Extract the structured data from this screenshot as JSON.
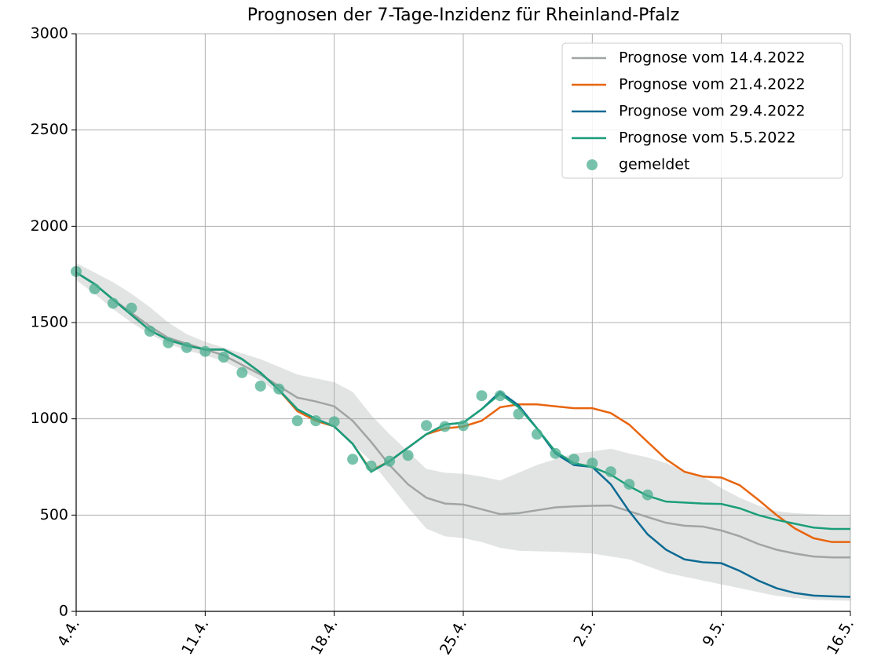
{
  "chart_data": {
    "type": "line",
    "title": "Prognosen der 7-Tage-Inzidenz für Rheinland-Pfalz",
    "x": [
      0,
      1,
      2,
      3,
      4,
      5,
      6,
      7,
      8,
      9,
      10,
      11,
      12,
      13,
      14,
      15,
      16,
      17,
      18,
      19,
      20,
      21,
      22,
      23,
      24,
      25,
      26,
      27,
      28,
      29,
      30,
      31,
      32,
      33,
      34,
      35,
      36,
      37,
      38,
      39,
      40,
      41,
      42
    ],
    "xlim": [
      0,
      42
    ],
    "xticks": [
      {
        "value": 0,
        "label": "4.4."
      },
      {
        "value": 7,
        "label": "11.4."
      },
      {
        "value": 14,
        "label": "18.4."
      },
      {
        "value": 21,
        "label": "25.4."
      },
      {
        "value": 28,
        "label": "2.5."
      },
      {
        "value": 35,
        "label": "9.5."
      },
      {
        "value": 42,
        "label": "16.5."
      }
    ],
    "ylim": [
      0,
      3000
    ],
    "yticks": [
      0,
      500,
      1000,
      1500,
      2000,
      2500,
      3000
    ],
    "grid": true,
    "legend": "upper right",
    "band": {
      "color": "#a0a5a3",
      "lower": [
        1720,
        1650,
        1570,
        1500,
        1440,
        1390,
        1355,
        1330,
        1300,
        1250,
        1200,
        1130,
        1060,
        1010,
        960,
        870,
        780,
        660,
        540,
        430,
        390,
        380,
        360,
        330,
        315,
        312,
        310,
        305,
        300,
        285,
        270,
        235,
        200,
        180,
        160,
        140,
        120,
        100,
        80,
        70,
        60,
        57,
        55
      ],
      "upper": [
        1810,
        1760,
        1710,
        1650,
        1580,
        1500,
        1440,
        1400,
        1370,
        1340,
        1310,
        1270,
        1230,
        1210,
        1190,
        1140,
        1020,
        920,
        830,
        740,
        720,
        715,
        700,
        680,
        720,
        760,
        790,
        820,
        830,
        845,
        820,
        800,
        770,
        730,
        700,
        640,
        590,
        550,
        520,
        510,
        505,
        500,
        500
      ]
    },
    "series": [
      {
        "name": "Prognose vom 14.4.2022",
        "color": "#a0a5a3",
        "values": [
          1760,
          1700,
          1620,
          1550,
          1480,
          1420,
          1390,
          1360,
          1330,
          1280,
          1230,
          1170,
          1110,
          1090,
          1065,
          990,
          880,
          760,
          660,
          590,
          560,
          555,
          530,
          505,
          510,
          525,
          540,
          545,
          548,
          550,
          520,
          490,
          460,
          445,
          440,
          420,
          390,
          350,
          320,
          300,
          285,
          280,
          280
        ]
      },
      {
        "name": "Prognose vom 21.4.2022",
        "color": "#e8650f",
        "values": [
          1760,
          1700,
          1620,
          1540,
          1460,
          1410,
          1380,
          1360,
          1360,
          1310,
          1240,
          1150,
          1040,
          990,
          960,
          870,
          730,
          780,
          850,
          920,
          950,
          960,
          990,
          1060,
          1075,
          1075,
          1065,
          1055,
          1055,
          1030,
          970,
          880,
          790,
          725,
          700,
          695,
          655,
          580,
          500,
          430,
          380,
          360,
          360
        ]
      },
      {
        "name": "Prognose vom 29.4.2022",
        "color": "#0c6a93",
        "values": [
          1760,
          1700,
          1620,
          1540,
          1460,
          1410,
          1380,
          1360,
          1360,
          1310,
          1240,
          1150,
          1050,
          1000,
          960,
          870,
          725,
          780,
          850,
          920,
          970,
          980,
          1050,
          1140,
          1070,
          950,
          820,
          760,
          750,
          660,
          520,
          400,
          320,
          270,
          255,
          250,
          210,
          160,
          120,
          95,
          82,
          78,
          75
        ]
      },
      {
        "name": "Prognose vom 5.5.2022",
        "color": "#1b9e7a",
        "values": [
          1760,
          1700,
          1620,
          1540,
          1460,
          1410,
          1380,
          1360,
          1360,
          1310,
          1240,
          1150,
          1050,
          1000,
          960,
          870,
          725,
          780,
          850,
          920,
          970,
          980,
          1050,
          1130,
          1060,
          950,
          830,
          770,
          750,
          710,
          650,
          600,
          570,
          565,
          560,
          558,
          535,
          500,
          475,
          455,
          435,
          428,
          428
        ]
      },
      {
        "name": "gemeldet",
        "color": "#4caf90",
        "marker": true,
        "values": [
          1765,
          1675,
          1600,
          1575,
          1455,
          1395,
          1370,
          1350,
          1320,
          1240,
          1170,
          1155,
          990,
          990,
          985,
          790,
          755,
          780,
          810,
          965,
          960,
          965,
          1120,
          1120,
          1025,
          920,
          820,
          790,
          770,
          725,
          660,
          605,
          null,
          null,
          null,
          null,
          null,
          null,
          null,
          null,
          null,
          null,
          null
        ]
      }
    ]
  }
}
